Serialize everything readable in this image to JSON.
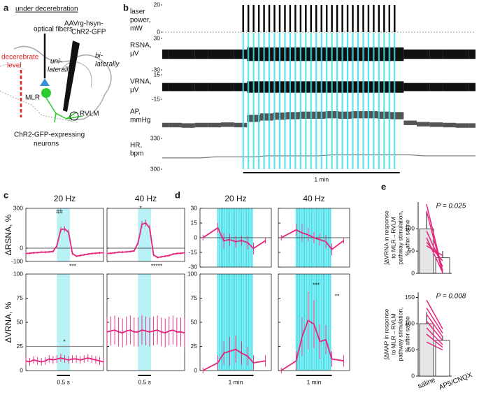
{
  "diagram": {
    "letter": "a",
    "title": "under decerebration",
    "labels": [
      "optical fibers",
      "AAVrg-hsyn-",
      "ChR2-GFP",
      "uni-",
      "laterally",
      "bi-",
      "laterally",
      "decerebrate",
      "level",
      "MLR",
      "RVLM",
      "ChR2-GFP-expressing",
      "neurons"
    ]
  },
  "chart_data": [
    {
      "type": "traces",
      "letter": "b",
      "xlim": [
        0,
        120
      ],
      "x": [
        0,
        5,
        10,
        15,
        20,
        25,
        30,
        35,
        40,
        45,
        50,
        55,
        60,
        65,
        70,
        75,
        80,
        85,
        90,
        95,
        100,
        105,
        110,
        115,
        120
      ],
      "pulse_times": [
        31,
        33,
        35,
        37,
        39,
        41,
        43,
        45,
        47,
        49,
        51,
        53,
        55,
        57,
        59,
        61,
        63,
        65,
        67,
        69,
        71,
        73,
        75,
        77,
        79,
        81,
        83,
        85,
        87,
        89
      ],
      "scale_bar": {
        "label": "1 min",
        "range": [
          31,
          91
        ]
      },
      "traces": [
        {
          "label": [
            "laser",
            "power,",
            "mW"
          ],
          "style": "pulses",
          "ylim": [
            0,
            20
          ],
          "yticks": [
            20,
            0
          ],
          "pulse_power": 20
        },
        {
          "label": [
            "RSNA,",
            "μV"
          ],
          "style": "band",
          "color": "#111111",
          "ylim": [
            -30,
            30
          ],
          "yticks": [
            30,
            -30
          ],
          "spread": [
            9,
            9,
            9,
            9,
            9,
            9,
            9,
            13,
            13,
            13,
            13,
            13,
            13,
            13,
            13,
            13,
            13,
            13,
            13,
            9,
            9,
            9,
            9,
            9,
            9
          ]
        },
        {
          "label": [
            "VRNA,",
            "μV"
          ],
          "style": "band",
          "color": "#111111",
          "ylim": [
            -15,
            15
          ],
          "yticks": [
            15,
            -15
          ],
          "spread": [
            5,
            5,
            5,
            5,
            5,
            5,
            5,
            7,
            7,
            7,
            7,
            7,
            7,
            7,
            7,
            7,
            7,
            7,
            7,
            5,
            5,
            5,
            5,
            5,
            5
          ]
        },
        {
          "label": [
            "AP,",
            "mmHg"
          ],
          "style": "band",
          "color": "#555555",
          "ylim": [
            70,
            140
          ],
          "values": [
            95,
            95,
            94,
            95,
            95,
            96,
            95,
            110,
            113,
            115,
            116,
            117,
            117,
            118,
            117,
            118,
            118,
            117,
            116,
            100,
            97,
            96,
            95,
            94,
            94
          ],
          "spread": [
            5,
            5,
            5,
            5,
            5,
            5,
            5,
            8,
            8,
            8,
            8,
            8,
            8,
            8,
            8,
            8,
            8,
            8,
            8,
            5,
            5,
            5,
            5,
            5,
            5
          ]
        },
        {
          "label": [
            "HR,",
            "bpm"
          ],
          "style": "line",
          "color": "#777777",
          "ylim": [
            300,
            330
          ],
          "yticks": [
            330,
            300
          ],
          "values": [
            311,
            311,
            311,
            311,
            312,
            312,
            312,
            312,
            313,
            313,
            313,
            313,
            313,
            314,
            314,
            314,
            314,
            314,
            314,
            314,
            313,
            313,
            313,
            313,
            313
          ]
        }
      ]
    },
    {
      "type": "line-errorbar",
      "letter": "c",
      "titles": [
        "20 Hz",
        "40 Hz"
      ],
      "xlim": [
        -1.2,
        1.8
      ],
      "stim": [
        0,
        0.5
      ],
      "x": [
        -1.2,
        -1.05,
        -0.9,
        -0.75,
        -0.6,
        -0.45,
        -0.3,
        -0.15,
        0,
        0.15,
        0.3,
        0.45,
        0.6,
        0.75,
        0.9,
        1.05,
        1.2,
        1.35,
        1.5,
        1.65,
        1.8
      ],
      "scale_bar": {
        "label": "0.5 s",
        "range": [
          0,
          0.5
        ]
      },
      "rows": [
        {
          "ylabel": "ΔRSNA, %",
          "ylim": [
            -100,
            300
          ],
          "yticks": [
            300,
            0,
            -100
          ],
          "zero_line": true,
          "plots": [
            {
              "values": [
                -40,
                -38,
                -35,
                -33,
                -30,
                -30,
                -28,
                -25,
                20,
                140,
                145,
                120,
                -40,
                -60,
                -55,
                -50,
                -45,
                -40,
                -38,
                -35,
                -35
              ],
              "errors": [
                8,
                8,
                8,
                8,
                8,
                8,
                8,
                8,
                15,
                20,
                20,
                20,
                10,
                8,
                8,
                8,
                8,
                8,
                8,
                8,
                8
              ],
              "annotations": [
                "##",
                "***"
              ]
            },
            {
              "values": [
                -40,
                -38,
                -35,
                -30,
                -30,
                -28,
                -25,
                -20,
                40,
                180,
                190,
                150,
                -50,
                -70,
                -65,
                -60,
                -55,
                -45,
                -40,
                -38,
                -35
              ],
              "errors": [
                8,
                8,
                8,
                8,
                8,
                8,
                8,
                8,
                15,
                25,
                25,
                25,
                10,
                8,
                8,
                8,
                8,
                8,
                8,
                8,
                8
              ],
              "annotations": [
                "*",
                "*****"
              ]
            }
          ]
        },
        {
          "ylabel": "ΔVRNA, %",
          "ylim": [
            0,
            100
          ],
          "yticks": [
            0,
            25,
            50,
            75,
            100
          ],
          "plots": [
            {
              "values": [
                10,
                9,
                11,
                10,
                9,
                10,
                12,
                11,
                12,
                13,
                12,
                11,
                12,
                12,
                11,
                12,
                13,
                12,
                11,
                10,
                9
              ],
              "errors": [
                4,
                4,
                4,
                4,
                4,
                4,
                4,
                4,
                4,
                4,
                4,
                4,
                4,
                4,
                4,
                4,
                4,
                4,
                4,
                4,
                4
              ],
              "ref_line": 25,
              "annotations": [
                "*"
              ]
            },
            {
              "values": [
                40,
                41,
                42,
                40,
                39,
                41,
                42,
                40,
                40,
                42,
                41,
                40,
                41,
                42,
                40,
                39,
                41,
                42,
                40,
                40,
                39
              ],
              "errors": [
                15,
                15,
                15,
                15,
                15,
                15,
                15,
                15,
                15,
                15,
                15,
                15,
                15,
                15,
                15,
                15,
                15,
                15,
                15,
                15,
                15
              ],
              "annotations": []
            }
          ]
        }
      ]
    },
    {
      "type": "line-errorbar",
      "letter": "d",
      "titles": [
        "20 Hz",
        "40 Hz"
      ],
      "xlim": [
        -30,
        90
      ],
      "x": [
        -25,
        0,
        10,
        20,
        30,
        40,
        50,
        60,
        80
      ],
      "pulse_times": [
        0,
        2,
        4,
        6,
        8,
        10,
        12,
        14,
        16,
        18,
        20,
        22,
        24,
        26,
        28,
        30,
        32,
        34,
        36,
        38,
        40,
        42,
        44,
        46,
        48,
        50,
        52,
        54,
        56,
        58
      ],
      "scale_bar": {
        "label": "1 min",
        "range": [
          0,
          60
        ]
      },
      "rows": [
        {
          "ylim": [
            -30,
            30
          ],
          "yticks": [
            30,
            15,
            0,
            -15,
            -30
          ],
          "zero_line": true,
          "plots": [
            {
              "values": [
                0,
                10,
                -3,
                -2,
                -4,
                -3,
                -5,
                -11,
                -3
              ],
              "errors": [
                3,
                5,
                8,
                6,
                6,
                5,
                7,
                6,
                3
              ],
              "annotations": []
            },
            {
              "values": [
                0,
                8,
                5,
                3,
                0,
                -2,
                -4,
                -12,
                -3
              ],
              "errors": [
                3,
                6,
                9,
                7,
                6,
                6,
                7,
                6,
                3
              ],
              "annotations": []
            }
          ]
        },
        {
          "ylim": [
            0,
            100
          ],
          "yticks": [
            0,
            25,
            50,
            75,
            100
          ],
          "plots": [
            {
              "values": [
                0,
                8,
                18,
                20,
                22,
                18,
                15,
                8,
                10
              ],
              "errors": [
                3,
                8,
                12,
                15,
                14,
                12,
                10,
                8,
                6
              ],
              "annotations": []
            },
            {
              "values": [
                0,
                10,
                35,
                52,
                48,
                30,
                32,
                12,
                10
              ],
              "errors": [
                3,
                10,
                20,
                30,
                25,
                18,
                15,
                8,
                6
              ],
              "annotations": [
                "***",
                "**"
              ]
            }
          ]
        }
      ]
    },
    {
      "type": "bar-paired",
      "letter": "e",
      "categories": [
        "saline",
        "AP5/CNQX"
      ],
      "plots": [
        {
          "ylabel": [
            "∫ΔVRNA in response",
            "to MLR→RVLM",
            "pathway stimulation,",
            "% after saline"
          ],
          "p_label": "P = 0.025",
          "ylim": [
            0,
            160
          ],
          "yticks": [
            0,
            50,
            100
          ],
          "values": [
            100,
            35
          ],
          "errors": [
            40,
            15
          ],
          "pairs": [
            [
              155,
              5
            ],
            [
              140,
              0
            ],
            [
              95,
              15
            ],
            [
              80,
              2
            ],
            [
              62,
              40
            ],
            [
              70,
              28
            ]
          ]
        },
        {
          "ylabel": [
            "∫ΔMAP in response",
            "to MLR→RVLM",
            "pathway stimulation,",
            "% after saline"
          ],
          "p_label": "P = 0.008",
          "ylim": [
            0,
            160
          ],
          "yticks": [
            0,
            50,
            100,
            150
          ],
          "values": [
            100,
            68
          ],
          "errors": [
            22,
            8
          ],
          "pairs": [
            [
              145,
              90
            ],
            [
              130,
              82
            ],
            [
              118,
              75
            ],
            [
              105,
              68
            ],
            [
              92,
              60
            ],
            [
              80,
              55
            ],
            [
              65,
              50
            ]
          ]
        }
      ]
    }
  ]
}
